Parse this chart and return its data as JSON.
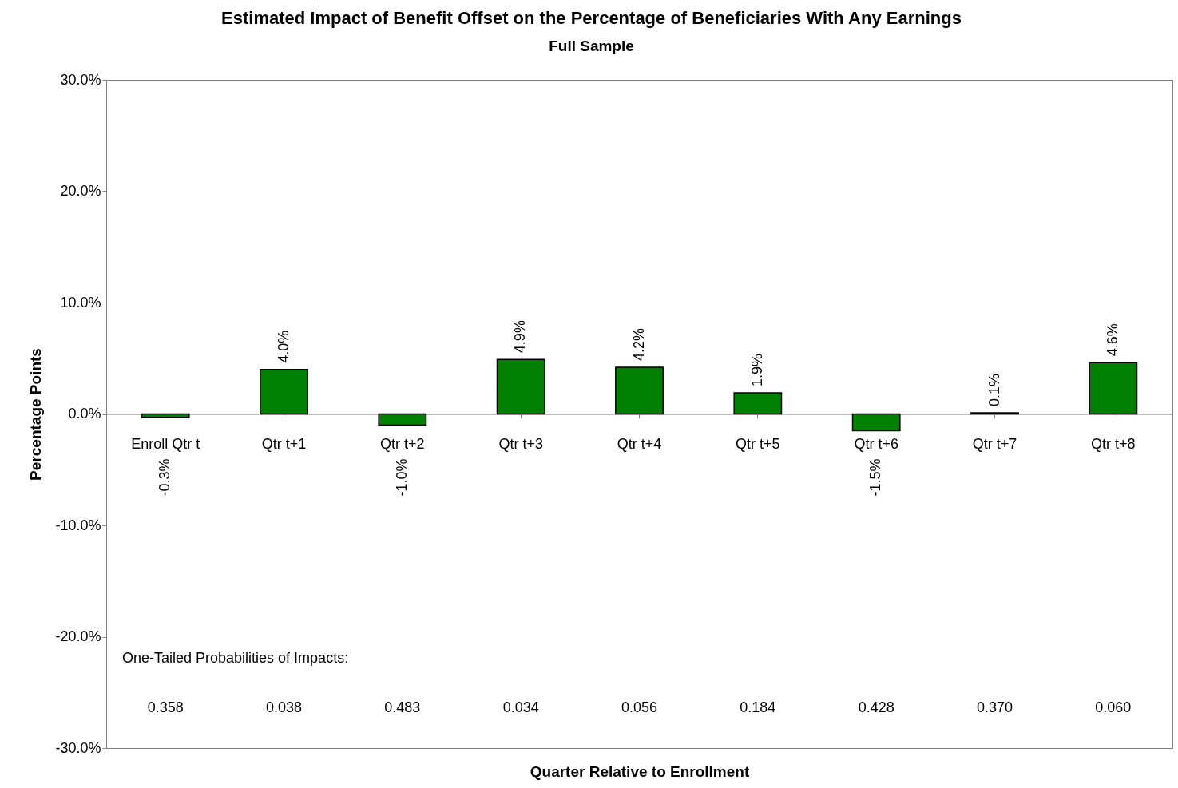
{
  "chart_data": {
    "type": "bar",
    "title": "Estimated Impact of Benefit Offset on the Percentage of Beneficiaries With Any Earnings",
    "subtitle": "Full Sample",
    "xlabel": "Quarter Relative to Enrollment",
    "ylabel": "Percentage Points",
    "categories": [
      "Enroll Qtr t",
      "Qtr t+1",
      "Qtr t+2",
      "Qtr t+3",
      "Qtr t+4",
      "Qtr t+5",
      "Qtr t+6",
      "Qtr t+7",
      "Qtr t+8"
    ],
    "values": [
      -0.3,
      4.0,
      -1.0,
      4.9,
      4.2,
      1.9,
      -1.5,
      0.1,
      4.6
    ],
    "value_labels": [
      "-0.3%",
      "4.0%",
      "-1.0%",
      "4.9%",
      "4.2%",
      "1.9%",
      "-1.5%",
      "0.1%",
      "4.6%"
    ],
    "color": "#008000",
    "ylim": [
      -30,
      30
    ],
    "yticks": [
      {
        "value": -30,
        "label": "-30.0%"
      },
      {
        "value": -20,
        "label": "-20.0%"
      },
      {
        "value": -10,
        "label": "-10.0%"
      },
      {
        "value": 0,
        "label": "0.0%"
      },
      {
        "value": 10,
        "label": "10.0%"
      },
      {
        "value": 20,
        "label": "20.0%"
      },
      {
        "value": 30,
        "label": "30.0%"
      }
    ],
    "grid": false,
    "annotations": [
      "One-Tailed Probabilities of Impacts:",
      "0.358",
      "0.038",
      "0.483",
      "0.034",
      "0.056",
      "0.184",
      "0.428",
      "0.370",
      "0.060"
    ]
  }
}
